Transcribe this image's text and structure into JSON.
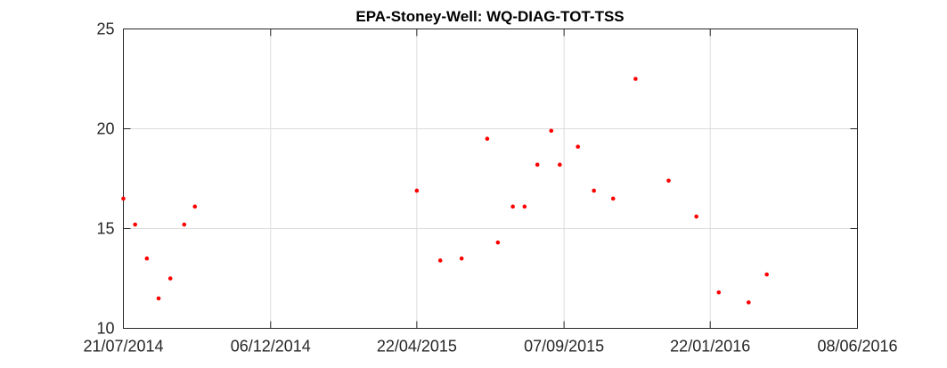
{
  "chart_data": {
    "type": "scatter",
    "title": "EPA-Stoney-Well: WQ-DIAG-TOT-TSS",
    "xlabel": "",
    "ylabel": "",
    "xlim": [
      "2014-07-21",
      "2016-06-08"
    ],
    "ylim": [
      10,
      25
    ],
    "x_ticks": [
      "21/07/2014",
      "06/12/2014",
      "22/04/2015",
      "07/09/2015",
      "22/01/2016",
      "08/06/2016"
    ],
    "x_tick_dates": [
      "2014-07-21",
      "2014-12-06",
      "2015-04-22",
      "2015-09-07",
      "2016-01-22",
      "2016-06-08"
    ],
    "y_ticks": [
      10,
      15,
      20,
      25
    ],
    "grid": true,
    "marker_color": "#ff0000",
    "points": [
      {
        "x": "2014-07-21",
        "y": 16.5
      },
      {
        "x": "2014-08-01",
        "y": 15.2
      },
      {
        "x": "2014-08-12",
        "y": 13.5
      },
      {
        "x": "2014-08-23",
        "y": 11.5
      },
      {
        "x": "2014-09-03",
        "y": 12.5
      },
      {
        "x": "2014-09-16",
        "y": 15.2
      },
      {
        "x": "2014-09-26",
        "y": 16.1
      },
      {
        "x": "2015-04-22",
        "y": 16.9
      },
      {
        "x": "2015-05-14",
        "y": 13.4
      },
      {
        "x": "2015-06-03",
        "y": 13.5
      },
      {
        "x": "2015-06-27",
        "y": 19.5
      },
      {
        "x": "2015-07-07",
        "y": 14.3
      },
      {
        "x": "2015-07-21",
        "y": 16.1
      },
      {
        "x": "2015-08-01",
        "y": 16.1
      },
      {
        "x": "2015-08-13",
        "y": 18.2
      },
      {
        "x": "2015-08-26",
        "y": 19.9
      },
      {
        "x": "2015-09-03",
        "y": 18.2
      },
      {
        "x": "2015-09-20",
        "y": 19.1
      },
      {
        "x": "2015-10-05",
        "y": 16.9
      },
      {
        "x": "2015-10-23",
        "y": 16.5
      },
      {
        "x": "2015-11-13",
        "y": 22.5
      },
      {
        "x": "2015-12-14",
        "y": 17.4
      },
      {
        "x": "2016-01-09",
        "y": 15.6
      },
      {
        "x": "2016-01-30",
        "y": 11.8
      },
      {
        "x": "2016-02-27",
        "y": 11.3
      },
      {
        "x": "2016-03-15",
        "y": 12.7
      }
    ]
  }
}
